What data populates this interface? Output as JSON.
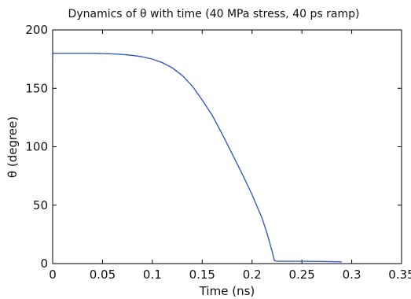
{
  "chart_data": {
    "type": "line",
    "title": "Dynamics of θ with time (40 MPa stress, 40 ps ramp)",
    "xlabel": "Time (ns)",
    "ylabel": "θ (degree)",
    "xlim": [
      0,
      0.35
    ],
    "ylim": [
      0,
      200
    ],
    "x_ticks": [
      0,
      0.05,
      0.1,
      0.15,
      0.2,
      0.25,
      0.3,
      0.35
    ],
    "x_tick_labels": [
      "0",
      "0.05",
      "0.1",
      "0.15",
      "0.2",
      "0.25",
      "0.3",
      "0.35"
    ],
    "y_ticks": [
      0,
      50,
      100,
      150,
      200
    ],
    "y_tick_labels": [
      "0",
      "50",
      "100",
      "150",
      "200"
    ],
    "grid": false,
    "legend": "none",
    "line_color": "#3a5bbf",
    "series": [
      {
        "x": [
          0,
          0.02,
          0.04,
          0.06,
          0.07,
          0.08,
          0.09,
          0.1,
          0.11,
          0.12,
          0.13,
          0.14,
          0.15,
          0.16,
          0.17,
          0.18,
          0.19,
          0.2,
          0.21,
          0.215,
          0.22,
          0.2225,
          0.225,
          0.23,
          0.25,
          0.27,
          0.29
        ],
        "y": [
          180,
          180,
          180,
          179.5,
          179,
          178.2,
          177,
          175,
          172,
          167.5,
          161,
          152,
          140,
          127,
          111,
          94,
          77,
          59,
          39,
          26,
          11,
          2.5,
          2,
          2,
          2,
          1.8,
          1.5
        ]
      }
    ]
  }
}
